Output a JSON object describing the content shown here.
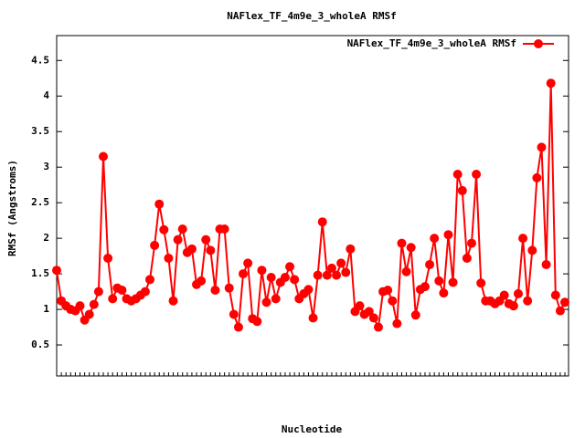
{
  "chart_data": {
    "type": "line",
    "title": "NAFlex_TF_4m9e_3_wholeA RMSf",
    "x_label": "Nucleotide",
    "y_label": "RMSf (Angstroms)",
    "categories": [
      null,
      null,
      null,
      null,
      null,
      null,
      null,
      null,
      null,
      null,
      null,
      null,
      null,
      null,
      null,
      null,
      null,
      null,
      null,
      null,
      null,
      null,
      null,
      null,
      null,
      null,
      null,
      null,
      null,
      null,
      null,
      null,
      null,
      null,
      null,
      null,
      null,
      null,
      null,
      null,
      null,
      null,
      null,
      null,
      null,
      null,
      null,
      null,
      null,
      null,
      null,
      null,
      null,
      null,
      null,
      null,
      null,
      null,
      null,
      null,
      null,
      null,
      null,
      null,
      null,
      null,
      null,
      null,
      null,
      null,
      null,
      null,
      null,
      null,
      null,
      null,
      null,
      null,
      null,
      null,
      null,
      null,
      null,
      null,
      null,
      null,
      null,
      null,
      null,
      null,
      null,
      null,
      null,
      null,
      null,
      null,
      null,
      null,
      null,
      null,
      null,
      null,
      null,
      null,
      null,
      null,
      null,
      null,
      null,
      null
    ],
    "series": [
      {
        "name": "NAFlex_TF_4m9e_3_wholeA RMSf",
        "color": "#ff0000",
        "values": [
          1.55,
          1.12,
          1.05,
          1.0,
          0.98,
          1.05,
          0.85,
          0.93,
          1.07,
          1.25,
          3.15,
          1.72,
          1.15,
          1.3,
          1.27,
          1.15,
          1.12,
          1.15,
          1.2,
          1.25,
          1.42,
          1.9,
          2.48,
          2.12,
          1.72,
          1.12,
          1.98,
          2.13,
          1.8,
          1.85,
          1.35,
          1.4,
          1.98,
          1.83,
          1.27,
          2.13,
          2.13,
          1.3,
          0.93,
          0.75,
          1.5,
          1.65,
          0.87,
          0.83,
          1.55,
          1.1,
          1.45,
          1.15,
          1.38,
          1.45,
          1.6,
          1.42,
          1.15,
          1.22,
          1.28,
          0.88,
          1.48,
          2.23,
          1.48,
          1.58,
          1.48,
          1.65,
          1.52,
          1.85,
          0.97,
          1.05,
          0.93,
          0.97,
          0.88,
          0.75,
          1.25,
          1.27,
          1.12,
          0.8,
          1.93,
          1.53,
          1.87,
          0.92,
          1.28,
          1.32,
          1.63,
          2.0,
          1.4,
          1.23,
          2.05,
          1.38,
          2.9,
          2.67,
          1.72,
          1.93,
          2.9,
          1.37,
          1.12,
          1.12,
          1.08,
          1.12,
          1.2,
          1.08,
          1.05,
          1.22,
          2.0,
          1.12,
          1.83,
          2.85,
          3.28,
          1.63,
          4.18,
          1.2,
          0.98,
          1.1
        ]
      }
    ],
    "ylim": [
      0,
      4.85
    ],
    "yticks": [
      0.5,
      1,
      1.5,
      2,
      2.5,
      3,
      3.5,
      4,
      4.5
    ],
    "legend": "top-right"
  }
}
